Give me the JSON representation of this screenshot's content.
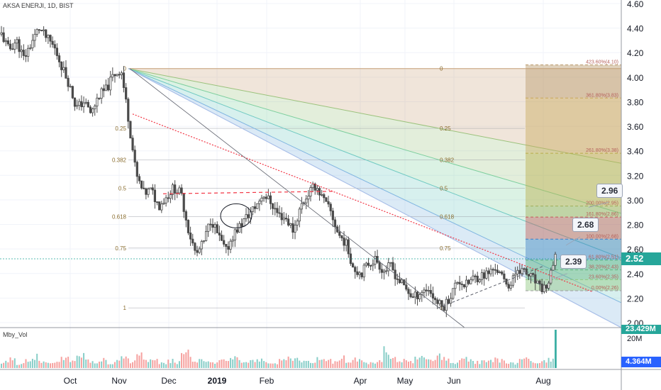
{
  "header": {
    "symbol": "AKSA ENERJI, 1D, BIST"
  },
  "volume": {
    "label": "Mby_Vol",
    "tag_top": "23.429M",
    "tag_bottom": "4.364M",
    "scale_label": "20M"
  },
  "price_tag": {
    "value": "2.52",
    "color": "#26a69a"
  },
  "callouts": [
    "2.96",
    "2.68",
    "2.39"
  ],
  "colors": {
    "up": "#26a69a",
    "down": "#ef5350",
    "candle": "#4a4a4a",
    "trend": "#f23645",
    "dashed": "#5d606b"
  },
  "chart_data": {
    "type": "candlestick",
    "title": "AKSA ENERJI, 1D, BIST",
    "ylim": [
      2.0,
      4.6
    ],
    "y_ticks": [
      "4.60",
      "4.40",
      "4.20",
      "4.00",
      "3.80",
      "3.60",
      "3.40",
      "3.20",
      "3.00",
      "2.80",
      "2.60",
      "2.40",
      "2.20",
      "2.00"
    ],
    "x_ticks": [
      "Oct",
      "Nov",
      "Dec",
      "2019",
      "Feb",
      "Apr",
      "May",
      "Jun",
      "Aug"
    ],
    "close_path": [
      4.35,
      4.22,
      4.3,
      4.15,
      4.28,
      4.4,
      4.32,
      4.25,
      4.1,
      3.95,
      3.75,
      3.8,
      3.7,
      3.85,
      3.9,
      4.02,
      4.06,
      3.65,
      3.2,
      3.05,
      3.08,
      2.95,
      3.02,
      3.1,
      3.05,
      2.75,
      2.55,
      2.65,
      2.85,
      2.7,
      2.58,
      2.72,
      2.8,
      2.88,
      2.95,
      3.05,
      2.98,
      2.88,
      2.85,
      2.75,
      2.95,
      3.05,
      3.12,
      3.0,
      2.9,
      2.72,
      2.65,
      2.45,
      2.4,
      2.48,
      2.52,
      2.42,
      2.46,
      2.35,
      2.28,
      2.2,
      2.25,
      2.28,
      2.18,
      2.12,
      2.22,
      2.35,
      2.3,
      2.36,
      2.38,
      2.4,
      2.45,
      2.35,
      2.3,
      2.45,
      2.4,
      2.36,
      2.27,
      2.3,
      2.52
    ],
    "fib_fan_levels": [
      "0",
      "0.25",
      "0.382",
      "0.5",
      "0.618",
      "0.75",
      "1"
    ],
    "fib_ext_labels": [
      "423.60%(4.10)",
      "361.80%(3.83)",
      "261.80%(3.38)",
      "200.00%(2.95)",
      "161.80%(2.86)",
      "100.00%(2.68)",
      "61.80%(2.51)",
      "38.20%(2.43)",
      "23.60%(2.35)",
      "0.00%(2.26)"
    ],
    "fib_ext_values": [
      4.1,
      3.83,
      3.38,
      2.95,
      2.86,
      2.68,
      2.51,
      2.43,
      2.35,
      2.26
    ],
    "volume_values": [
      4,
      6,
      3,
      5,
      8,
      4,
      3,
      5,
      6,
      4,
      9,
      5,
      4,
      6,
      3,
      5,
      7,
      4,
      8,
      5,
      6,
      3,
      5,
      4,
      10,
      6,
      5,
      4,
      3,
      5,
      6,
      8,
      4,
      5,
      6,
      4,
      3,
      5,
      7,
      6,
      5,
      4,
      6,
      5,
      4,
      7,
      5,
      6,
      4,
      3,
      5,
      12,
      6,
      5,
      4,
      6,
      7,
      5,
      8,
      6,
      4,
      5,
      6,
      4,
      5,
      6,
      5,
      4,
      3,
      5,
      6,
      4,
      5,
      6,
      23
    ]
  }
}
